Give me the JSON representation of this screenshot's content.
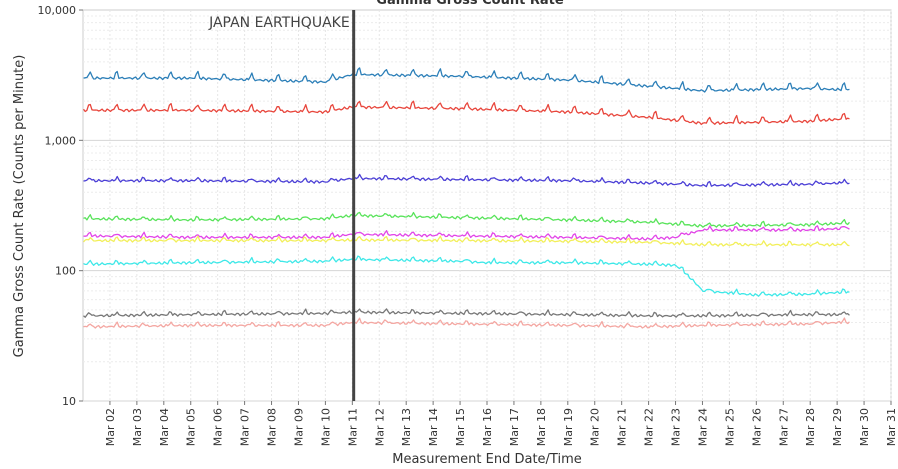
{
  "chart_data": {
    "type": "line",
    "title": "Gamma Gross Count Rate",
    "xlabel": "Measurement End Date/Time",
    "ylabel": "Gamma Gross Count Rate (Counts per Minute)",
    "y_scale": "log",
    "ylim": [
      10,
      10000
    ],
    "y_ticks": [
      {
        "value": 10,
        "label": "10"
      },
      {
        "value": 100,
        "label": "100"
      },
      {
        "value": 1000,
        "label": "1,000"
      },
      {
        "value": 10000,
        "label": "10,000"
      }
    ],
    "xlim": [
      "2011-03-01",
      "2011-03-31"
    ],
    "x_ticks": [
      "Mar 02",
      "Mar 03",
      "Mar 04",
      "Mar 05",
      "Mar 06",
      "Mar 07",
      "Mar 08",
      "Mar 09",
      "Mar 10",
      "Mar 11",
      "Mar 12",
      "Mar 13",
      "Mar 14",
      "Mar 15",
      "Mar 16",
      "Mar 17",
      "Mar 18",
      "Mar 19",
      "Mar 20",
      "Mar 21",
      "Mar 22",
      "Mar 23",
      "Mar 24",
      "Mar 25",
      "Mar 26",
      "Mar 27",
      "Mar 28",
      "Mar 29",
      "Mar 30",
      "Mar 31"
    ],
    "grid": true,
    "annotations": [
      {
        "type": "vertical-line",
        "x": "2011-03-11",
        "label": "JAPAN EARTHQUAKE"
      }
    ],
    "series": [
      {
        "color": "#2c7fb8",
        "x": [
          "2011-03-01",
          "2011-03-05",
          "2011-03-10",
          "2011-03-11",
          "2011-03-15",
          "2011-03-19",
          "2011-03-22",
          "2011-03-24",
          "2011-03-28",
          "2011-03-29"
        ],
        "values": [
          3000,
          3000,
          2800,
          3200,
          3100,
          2900,
          2600,
          2400,
          2500,
          2450
        ]
      },
      {
        "color": "#e8463c",
        "x": [
          "2011-03-01",
          "2011-03-05",
          "2011-03-10",
          "2011-03-11",
          "2011-03-15",
          "2011-03-19",
          "2011-03-22",
          "2011-03-24",
          "2011-03-28",
          "2011-03-29"
        ],
        "values": [
          1700,
          1700,
          1650,
          1800,
          1750,
          1650,
          1500,
          1350,
          1400,
          1450
        ]
      },
      {
        "color": "#4b3fd6",
        "x": [
          "2011-03-01",
          "2011-03-05",
          "2011-03-10",
          "2011-03-11",
          "2011-03-15",
          "2011-03-19",
          "2011-03-22",
          "2011-03-24",
          "2011-03-28",
          "2011-03-29"
        ],
        "values": [
          490,
          490,
          480,
          510,
          500,
          490,
          470,
          450,
          460,
          470
        ]
      },
      {
        "color": "#58e35a",
        "x": [
          "2011-03-01",
          "2011-03-05",
          "2011-03-10",
          "2011-03-11",
          "2011-03-15",
          "2011-03-19",
          "2011-03-22",
          "2011-03-24",
          "2011-03-28",
          "2011-03-29"
        ],
        "values": [
          250,
          245,
          250,
          265,
          255,
          245,
          235,
          220,
          225,
          230
        ]
      },
      {
        "color": "#e245e8",
        "x": [
          "2011-03-01",
          "2011-03-05",
          "2011-03-10",
          "2011-03-11",
          "2011-03-15",
          "2011-03-19",
          "2011-03-22",
          "2011-03-23",
          "2011-03-24",
          "2011-03-28",
          "2011-03-29"
        ],
        "values": [
          185,
          180,
          180,
          190,
          185,
          180,
          175,
          180,
          205,
          205,
          210
        ]
      },
      {
        "color": "#f2ef5a",
        "x": [
          "2011-03-01",
          "2011-03-05",
          "2011-03-10",
          "2011-03-11",
          "2011-03-15",
          "2011-03-19",
          "2011-03-22",
          "2011-03-24",
          "2011-03-28",
          "2011-03-29"
        ],
        "values": [
          170,
          170,
          170,
          172,
          170,
          168,
          165,
          158,
          158,
          158
        ]
      },
      {
        "color": "#3ee8e8",
        "x": [
          "2011-03-01",
          "2011-03-05",
          "2011-03-10",
          "2011-03-11",
          "2011-03-15",
          "2011-03-16",
          "2011-03-19",
          "2011-03-22",
          "2011-03-23",
          "2011-03-24",
          "2011-03-26",
          "2011-03-28",
          "2011-03-29"
        ],
        "values": [
          112,
          115,
          118,
          122,
          118,
          115,
          115,
          112,
          110,
          70,
          65,
          66,
          68
        ]
      },
      {
        "color": "#777777",
        "x": [
          "2011-03-01",
          "2011-03-05",
          "2011-03-10",
          "2011-03-11",
          "2011-03-15",
          "2011-03-19",
          "2011-03-22",
          "2011-03-24",
          "2011-03-28",
          "2011-03-29"
        ],
        "values": [
          45,
          46,
          47,
          48,
          47,
          46,
          45,
          45,
          46,
          46
        ]
      },
      {
        "color": "#f4a7a2",
        "x": [
          "2011-03-01",
          "2011-03-05",
          "2011-03-10",
          "2011-03-11",
          "2011-03-15",
          "2011-03-19",
          "2011-03-22",
          "2011-03-24",
          "2011-03-28",
          "2011-03-29"
        ],
        "values": [
          37,
          38,
          38,
          40,
          39,
          38,
          37,
          38,
          39,
          40
        ]
      }
    ]
  }
}
